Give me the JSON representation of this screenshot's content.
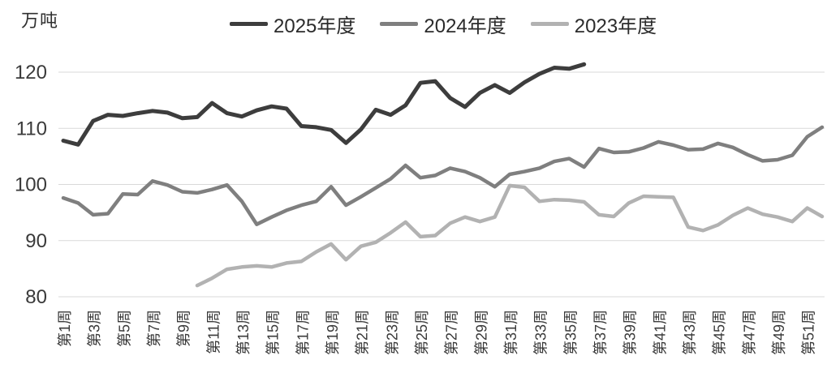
{
  "chart": {
    "unit_label": "万吨"
  },
  "legend": [
    {
      "label": "2025年度",
      "color": "#3d3d3d"
    },
    {
      "label": "2024年度",
      "color": "#7f7f7f"
    },
    {
      "label": "2023年度",
      "color": "#b2b2b2"
    }
  ],
  "chart_data": {
    "type": "line",
    "title": "",
    "ylabel": "万吨",
    "xlabel": "",
    "grid": true,
    "legend_position": "top",
    "ylim": [
      80,
      122
    ],
    "yticks": [
      80,
      90,
      100,
      110,
      120
    ],
    "weeks_total": 52,
    "x_tick_labels": [
      "第1周",
      "第3周",
      "第5周",
      "第7周",
      "第9周",
      "第11周",
      "第13周",
      "第15周",
      "第17周",
      "第19周",
      "第21周",
      "第23周",
      "第25周",
      "第27周",
      "第29周",
      "第31周",
      "第33周",
      "第35周",
      "第37周",
      "第39周",
      "第41周",
      "第43周",
      "第45周",
      "第47周",
      "第49周",
      "第51周"
    ],
    "series": [
      {
        "name": "2025年度",
        "color": "#3d3d3d",
        "stroke_width": 5,
        "start_week": 1,
        "values": [
          107.8,
          107.1,
          111.3,
          112.4,
          112.2,
          112.7,
          113.1,
          112.8,
          111.8,
          112.0,
          114.5,
          112.7,
          112.1,
          113.2,
          113.9,
          113.5,
          110.4,
          110.2,
          109.7,
          107.4,
          109.8,
          113.3,
          112.4,
          114.1,
          118.1,
          118.4,
          115.4,
          113.8,
          116.3,
          117.7,
          116.3,
          118.2,
          119.7,
          120.8,
          120.6,
          121.4
        ]
      },
      {
        "name": "2024年度",
        "color": "#7f7f7f",
        "stroke_width": 4.5,
        "start_week": 1,
        "values": [
          97.6,
          96.7,
          94.6,
          94.8,
          98.3,
          98.2,
          100.6,
          99.9,
          98.7,
          98.5,
          99.1,
          99.9,
          97.0,
          92.9,
          94.2,
          95.4,
          96.3,
          97.0,
          99.6,
          96.3,
          97.8,
          99.4,
          101.0,
          103.4,
          101.2,
          101.6,
          102.9,
          102.3,
          101.2,
          99.6,
          101.8,
          102.3,
          102.9,
          104.1,
          104.6,
          103.1,
          106.4,
          105.7,
          105.8,
          106.5,
          107.6,
          107.0,
          106.2,
          106.3,
          107.3,
          106.6,
          105.3,
          104.2,
          104.4,
          105.2,
          108.5,
          110.2
        ]
      },
      {
        "name": "2023年度",
        "color": "#b2b2b2",
        "stroke_width": 4.5,
        "start_week": 10,
        "values": [
          82.0,
          83.3,
          84.9,
          85.3,
          85.5,
          85.3,
          86.0,
          86.3,
          88.0,
          89.4,
          86.6,
          89.0,
          89.7,
          91.4,
          93.3,
          90.7,
          90.9,
          93.1,
          94.2,
          93.4,
          94.2,
          99.8,
          99.5,
          97.0,
          97.3,
          97.2,
          96.9,
          94.6,
          94.3,
          96.7,
          97.9,
          97.8,
          97.7,
          92.4,
          91.8,
          92.8,
          94.5,
          95.8,
          94.7,
          94.2,
          93.4,
          95.8,
          94.3
        ]
      }
    ]
  }
}
